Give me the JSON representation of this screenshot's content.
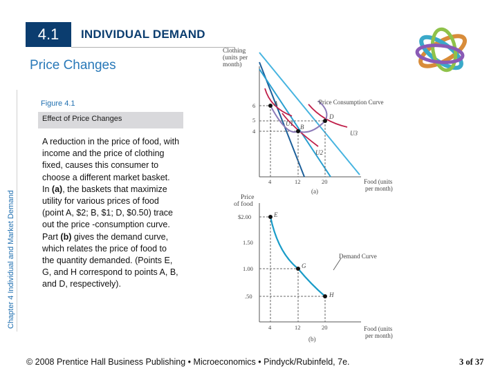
{
  "header": {
    "section_number": "4.1",
    "section_title": "INDIVIDUAL DEMAND",
    "slide_subtitle": "Price Changes"
  },
  "side_label": "Chapter 4  Individual and Market Demand",
  "figure": {
    "label": "Figure 4.1",
    "caption": "Effect of Price Changes",
    "body": {
      "p1": "A reduction in the price of food, with income and the price of clothing fixed, causes this consumer to choose a different market basket.",
      "p2a": "In ",
      "p2b": "(a)",
      "p2c": ", the baskets that maximize utility for various prices of food (point A, $2; B, $1; D, $0.50) trace out the price -consumption curve.",
      "p3a": "Part ",
      "p3b": "(b)",
      "p3c": " gives the demand curve, which relates the price of food to the quantity demanded. (Points E, G, and H correspond to points A, B, and D, respectively)."
    },
    "panel_a": {
      "ylabel_lines": [
        "Clothing",
        "(units per",
        "month)"
      ],
      "xlabel_lines": [
        "Food (units",
        "per month)"
      ],
      "y_ticks": [
        "6",
        "5",
        "4"
      ],
      "x_ticks": [
        "4",
        "12",
        "20"
      ],
      "tag": "(a)",
      "curve_label": "Price Consumption Curve",
      "points": [
        {
          "label": "A"
        },
        {
          "label": "B"
        },
        {
          "label": "D"
        }
      ],
      "indifference_labels": [
        "U1",
        "U2",
        "U3"
      ]
    },
    "panel_b": {
      "ylabel_lines": [
        "Price",
        "of food"
      ],
      "xlabel_lines": [
        "Food (units",
        "per month)"
      ],
      "y_ticks": [
        "$2.00",
        "1.50",
        "1.00",
        ".50"
      ],
      "x_ticks": [
        "4",
        "12",
        "20"
      ],
      "tag": "(b)",
      "curve_label": "Demand Curve",
      "points": [
        {
          "label": "E"
        },
        {
          "label": "G"
        },
        {
          "label": "H"
        }
      ]
    },
    "chart_data": [
      {
        "type": "line",
        "title": "",
        "xlabel": "Food (units per month)",
        "ylabel": "Clothing (units per month)",
        "series": [
          {
            "name": "Price Consumption Curve",
            "x": [
              4,
              12,
              20
            ],
            "y": [
              6,
              4,
              5
            ]
          }
        ],
        "points": [
          {
            "label": "A",
            "x": 4,
            "y": 6
          },
          {
            "label": "B",
            "x": 12,
            "y": 4
          },
          {
            "label": "D",
            "x": 20,
            "y": 5
          }
        ],
        "xlim": [
          0,
          24
        ],
        "ylim": [
          0,
          12
        ]
      },
      {
        "type": "line",
        "title": "",
        "xlabel": "Food (units per month)",
        "ylabel": "Price of food",
        "series": [
          {
            "name": "Demand Curve",
            "x": [
              4,
              12,
              20
            ],
            "y": [
              2.0,
              1.0,
              0.5
            ]
          }
        ],
        "points": [
          {
            "label": "E",
            "x": 4,
            "y": 2.0
          },
          {
            "label": "G",
            "x": 12,
            "y": 1.0
          },
          {
            "label": "H",
            "x": 20,
            "y": 0.5
          }
        ],
        "xlim": [
          0,
          24
        ],
        "ylim": [
          0,
          2.4
        ]
      }
    ]
  },
  "footer": {
    "text": "© 2008 Prentice Hall Business Publishing  •  Microeconomics  •  Pindyck/Rubinfeld, 7e.",
    "page": "3 of 37"
  },
  "colors": {
    "section_bg": "#0b3d6f",
    "subtitle": "#2878b8",
    "line_blue": "#2a9fd0",
    "dark_blue": "#1c5f9a",
    "indiff_red": "#c0204a",
    "pcc_purple": "#8c7ab8"
  }
}
